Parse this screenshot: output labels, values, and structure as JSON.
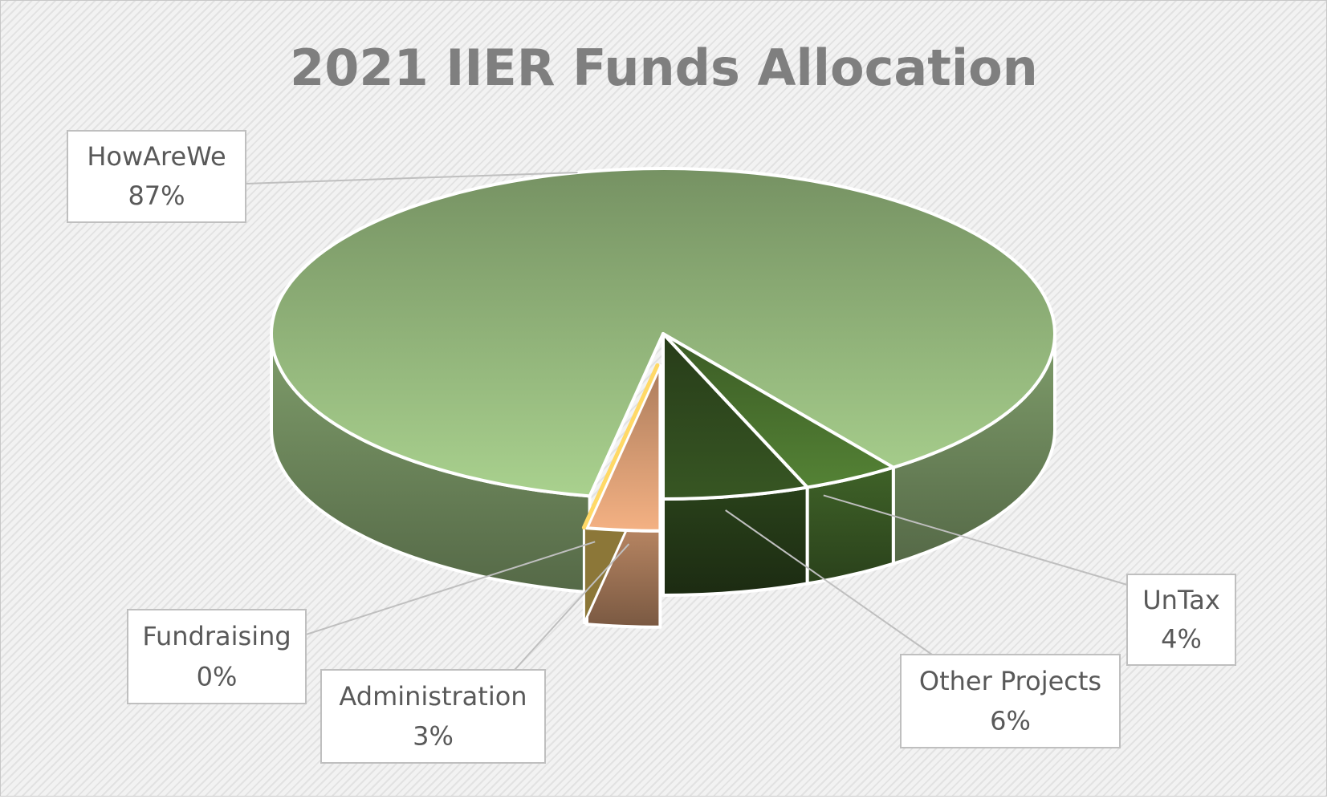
{
  "chart_data": {
    "type": "pie",
    "title": "2021 IIER Funds Allocation",
    "categories": [
      "HowAreWe",
      "UnTax",
      "Other Projects",
      "Administration",
      "Fundraising"
    ],
    "values": [
      87,
      4,
      6,
      3,
      0
    ],
    "value_labels": [
      "87%",
      "4%",
      "6%",
      "3%",
      "0%"
    ],
    "colors": [
      "#a9d18e",
      "#548235",
      "#375623",
      "#f4b183",
      "#ffd966"
    ],
    "exploded": [
      false,
      false,
      false,
      true,
      true
    ]
  }
}
